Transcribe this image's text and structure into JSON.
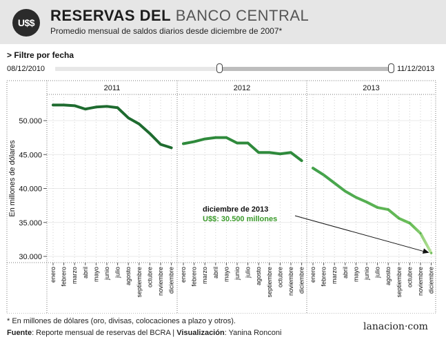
{
  "header": {
    "logo": "U$$",
    "title_strong": "RESERVAS DEL",
    "title_light": "BANCO CENTRAL",
    "subtitle": "Promedio mensual de saldos diarios desde diciembre de 2007*"
  },
  "filter": {
    "label": "> Filtre por fecha",
    "start_date": "08/12/2010",
    "end_date": "11/12/2013",
    "selected_range_fraction": [
      0.49,
      1.0
    ]
  },
  "chart_data": {
    "type": "line",
    "ylabel": "En millones de dólares",
    "ylim": [
      29500,
      55000
    ],
    "y_ticks": [
      30000,
      35000,
      40000,
      45000,
      50000
    ],
    "y_tick_labels": [
      "30.000",
      "35.000",
      "40.000",
      "45.000",
      "50.000"
    ],
    "grid": true,
    "panels": [
      {
        "year": "2011",
        "months": [
          "enero",
          "febrero",
          "marzo",
          "abril",
          "mayo",
          "junio",
          "julio",
          "agosto",
          "septiembre",
          "octubre",
          "noviembre",
          "diciembre"
        ],
        "values": [
          52300,
          52300,
          52200,
          51700,
          52000,
          52100,
          51900,
          50400,
          49500,
          48100,
          46500,
          46000
        ]
      },
      {
        "year": "2012",
        "months": [
          "enero",
          "febrero",
          "marzo",
          "abril",
          "mayo",
          "junio",
          "julio",
          "agosto",
          "septiembre",
          "octubre",
          "noviembre",
          "diciembre"
        ],
        "values": [
          46600,
          46900,
          47300,
          47500,
          47500,
          46700,
          46700,
          45300,
          45300,
          45100,
          45300,
          44100
        ]
      },
      {
        "year": "2013",
        "months": [
          "enero",
          "febrero",
          "marzo",
          "abril",
          "mayo",
          "junio",
          "julio",
          "agosto",
          "septiembre",
          "octubre",
          "noviembre",
          "diciembre"
        ],
        "values": [
          43000,
          42000,
          40800,
          39600,
          38700,
          38000,
          37200,
          36900,
          35600,
          34900,
          33400,
          30500
        ]
      }
    ],
    "annotation": {
      "title": "diciembre de 2013",
      "label_currency": "U$$",
      "label_value": ": 30.500 millones"
    },
    "colors": {
      "line_2011": "#1e6b2f",
      "line_2012": "#2f8a3c",
      "line_2013_start": "#3f9f4a",
      "line_2013_end": "#b9e39a",
      "annotation_value": "#3a9a2a"
    }
  },
  "footer": {
    "note": "* En millones de dólares (oro, divisas, colocaciones a plazo y otros).",
    "source_label": "Fuente",
    "source_text": ": Reporte mensual de reservas del BCRA | ",
    "viz_label": "Visualización",
    "viz_text": ": Yanina Ronconi",
    "brand": "lanacion·com"
  }
}
